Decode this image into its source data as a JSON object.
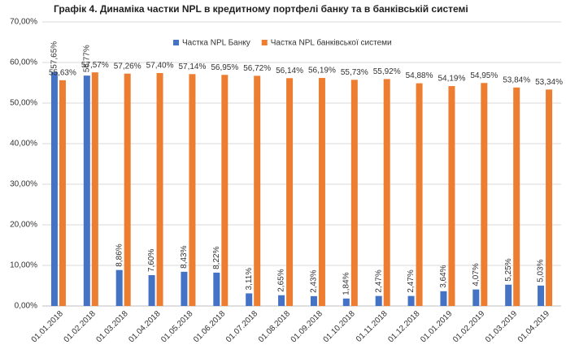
{
  "chart_data": {
    "type": "bar",
    "title": "Графік 4. Динаміка частки NPL в кредитному портфелі банку та в банківській системі",
    "categories": [
      "01.01.2018",
      "01.02.2018",
      "01.03.2018",
      "01.04.2018",
      "01.05.2018",
      "01.06.2018",
      "01.07.2018",
      "01.08.2018",
      "01.09.2018",
      "01.10.2018",
      "01.11.2018",
      "01.12.2018",
      "01.01.2019",
      "01.02.2019",
      "01.03.2019",
      "01.04.2019"
    ],
    "series": [
      {
        "name": "Частка NPL Банку",
        "color": "#4472c4",
        "values": [
          57.65,
          56.77,
          8.86,
          7.6,
          8.43,
          8.22,
          3.11,
          2.65,
          2.43,
          1.84,
          2.47,
          2.47,
          3.64,
          4.07,
          5.25,
          5.03
        ],
        "value_labels": [
          "57,65%",
          "56,77%",
          "8,86%",
          "7,60%",
          "8,43%",
          "8,22%",
          "3,11%",
          "2,65%",
          "2,43%",
          "1,84%",
          "2,47%",
          "2,47%",
          "3,64%",
          "4,07%",
          "5,25%",
          "5,03%"
        ]
      },
      {
        "name": "Частка NPL банківської системи",
        "color": "#ed7d31",
        "values": [
          55.63,
          57.57,
          57.26,
          57.4,
          57.14,
          56.95,
          56.72,
          56.14,
          56.19,
          55.73,
          55.92,
          54.88,
          54.19,
          54.95,
          53.84,
          53.34
        ],
        "value_labels": [
          "55,63%",
          "57,57%",
          "57,26%",
          "57,40%",
          "57,14%",
          "56,95%",
          "56,72%",
          "56,14%",
          "56,19%",
          "55,73%",
          "55,92%",
          "54,88%",
          "54,19%",
          "54,95%",
          "53,84%",
          "53,34%"
        ]
      }
    ],
    "ylim": [
      0,
      70
    ],
    "yticks": [
      {
        "value": 0,
        "label": "0,00%"
      },
      {
        "value": 10,
        "label": "10,00%"
      },
      {
        "value": 20,
        "label": "20,00%"
      },
      {
        "value": 30,
        "label": "30,00%"
      },
      {
        "value": 40,
        "label": "40,00%"
      },
      {
        "value": 50,
        "label": "50,00%"
      },
      {
        "value": 60,
        "label": "60,00%"
      },
      {
        "value": 70,
        "label": "70,00%"
      }
    ],
    "grid": true,
    "legend": "top"
  }
}
